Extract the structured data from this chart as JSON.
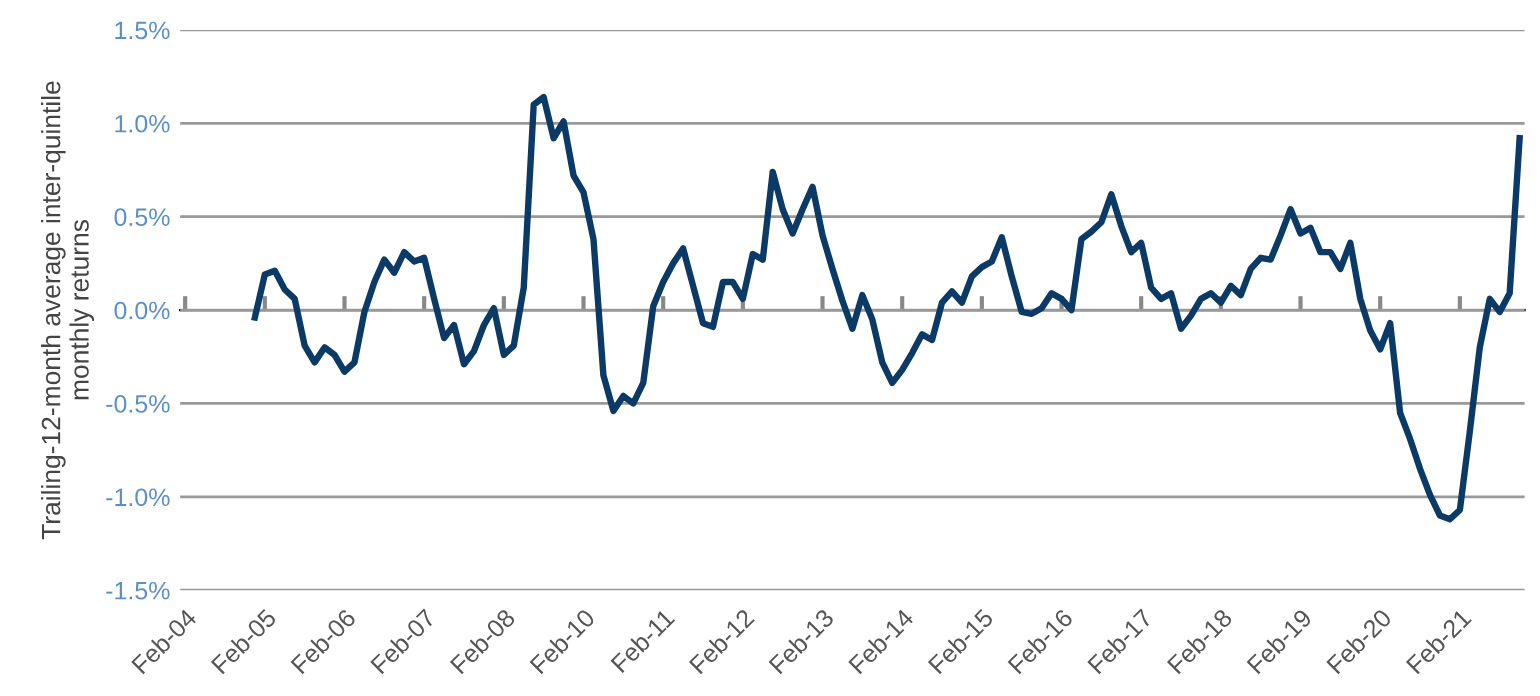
{
  "chart_data": {
    "type": "line",
    "ylabel": "Trailing-12-month average inter-quintile\nmonthly returns",
    "ylim": [
      -1.5,
      1.5
    ],
    "grid": "y",
    "marker": "none",
    "line_style": "solid",
    "categories": [
      "Feb-04",
      null,
      null,
      null,
      null,
      null,
      null,
      null,
      "Feb-05",
      null,
      null,
      null,
      null,
      null,
      null,
      null,
      "Feb-06",
      null,
      null,
      null,
      null,
      null,
      null,
      null,
      "Feb-07",
      null,
      null,
      null,
      null,
      null,
      null,
      null,
      "Feb-08",
      null,
      null,
      null,
      null,
      null,
      null,
      null,
      "Feb-10",
      null,
      null,
      null,
      null,
      null,
      null,
      null,
      "Feb-11",
      null,
      null,
      null,
      null,
      null,
      null,
      null,
      "Feb-12",
      null,
      null,
      null,
      null,
      null,
      null,
      null,
      "Feb-13",
      null,
      null,
      null,
      null,
      null,
      null,
      null,
      "Feb-14",
      null,
      null,
      null,
      null,
      null,
      null,
      null,
      "Feb-15",
      null,
      null,
      null,
      null,
      null,
      null,
      null,
      "Feb-16",
      null,
      null,
      null,
      null,
      null,
      null,
      null,
      "Feb-17",
      null,
      null,
      null,
      null,
      null,
      null,
      null,
      "Feb-18",
      null,
      null,
      null,
      null,
      null,
      null,
      null,
      "Feb-19",
      null,
      null,
      null,
      null,
      null,
      null,
      null,
      "Feb-20",
      null,
      null,
      null,
      null,
      null,
      null,
      null,
      "Feb-21",
      null,
      null,
      null,
      null,
      null,
      null
    ],
    "yticks": [
      {
        "value": 1.5,
        "label": "1.5%"
      },
      {
        "value": 1.0,
        "label": "1.0%"
      },
      {
        "value": 0.5,
        "label": "0.5%"
      },
      {
        "value": 0,
        "label": "0.0%"
      },
      {
        "value": -0.5,
        "label": "-0.5%"
      },
      {
        "value": -1.0,
        "label": "-1.0%"
      },
      {
        "value": -1.5,
        "label": "-1.5%"
      }
    ],
    "series": [
      {
        "color": "#0b3a66",
        "values": [
          null,
          null,
          null,
          null,
          null,
          null,
          null,
          -0.04,
          0.19,
          0.21,
          0.11,
          0.06,
          -0.19,
          -0.28,
          -0.2,
          -0.24,
          -0.33,
          -0.28,
          -0.01,
          0.15,
          0.27,
          0.2,
          0.31,
          0.26,
          0.28,
          0.06,
          -0.15,
          -0.08,
          -0.29,
          -0.22,
          -0.08,
          0.01,
          -0.24,
          -0.19,
          0.12,
          1.1,
          1.14,
          0.92,
          1.01,
          0.72,
          0.63,
          0.38,
          -0.35,
          -0.54,
          -0.46,
          -0.5,
          -0.39,
          0.02,
          0.15,
          0.25,
          0.33,
          0.13,
          -0.07,
          -0.09,
          0.15,
          0.15,
          0.06,
          0.3,
          0.27,
          0.74,
          0.54,
          0.41,
          0.54,
          0.66,
          0.4,
          0.22,
          0.05,
          -0.1,
          0.08,
          -0.05,
          -0.28,
          -0.39,
          -0.32,
          -0.23,
          -0.13,
          -0.16,
          0.04,
          0.1,
          0.04,
          0.18,
          0.23,
          0.26,
          0.39,
          0.18,
          -0.01,
          -0.02,
          0.01,
          0.09,
          0.06,
          0.0,
          0.38,
          0.42,
          0.47,
          0.62,
          0.45,
          0.31,
          0.36,
          0.12,
          0.06,
          0.09,
          -0.1,
          -0.03,
          0.06,
          0.09,
          0.04,
          0.13,
          0.08,
          0.22,
          0.28,
          0.27,
          0.4,
          0.54,
          0.41,
          0.44,
          0.31,
          0.31,
          0.22,
          0.36,
          0.06,
          -0.11,
          -0.21,
          -0.07,
          -0.55,
          -0.69,
          -0.85,
          -0.99,
          -1.1,
          -1.12,
          -1.07,
          -0.65,
          -0.2,
          0.06,
          -0.01,
          0.09,
          0.92
        ]
      }
    ]
  }
}
